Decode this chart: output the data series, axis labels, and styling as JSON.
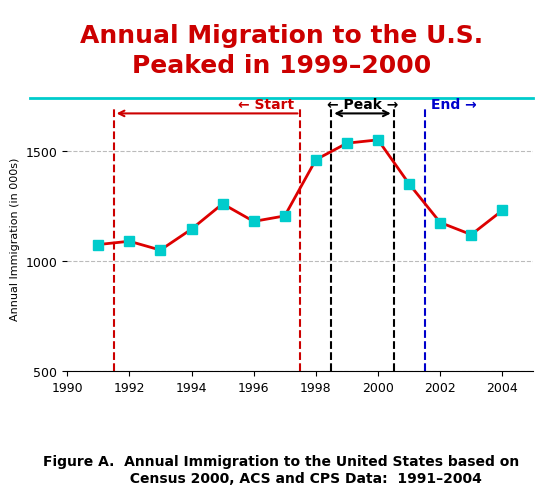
{
  "title_line1": "Annual Migration to the U.S.",
  "title_line2": "Peaked in 1999–2000",
  "title_color": "#cc0000",
  "title_fontsize": 18,
  "ylabel": "Annual Immigration (in 000s)",
  "ylabel_fontsize": 8,
  "years": [
    1991,
    1992,
    1993,
    1994,
    1995,
    1996,
    1997,
    1998,
    1999,
    2000,
    2001,
    2002,
    2003,
    2004
  ],
  "values": [
    1075,
    1090,
    1050,
    1145,
    1260,
    1180,
    1205,
    1460,
    1535,
    1550,
    1350,
    1175,
    1120,
    1230
  ],
  "line_color": "#dd0000",
  "marker_color": "#00cccc",
  "marker_style": "s",
  "marker_size": 7,
  "xmin": 1990,
  "xmax": 2005,
  "ymin": 500,
  "ymax": 1700,
  "yticks": [
    500,
    1000,
    1500
  ],
  "grid_color": "#bbbbbb",
  "vline_red1_x": 1991.5,
  "vline_red2_x": 1997.5,
  "vline_black1_x": 1998.5,
  "vline_black2_x": 2000.5,
  "vline_blue1_x": 2001.5,
  "caption": "Figure A.  Annual Immigration to the United States based on\n          Census 2000, ACS and CPS Data:  1991–2004",
  "caption_fontsize": 10,
  "bg_color": "#ffffff"
}
